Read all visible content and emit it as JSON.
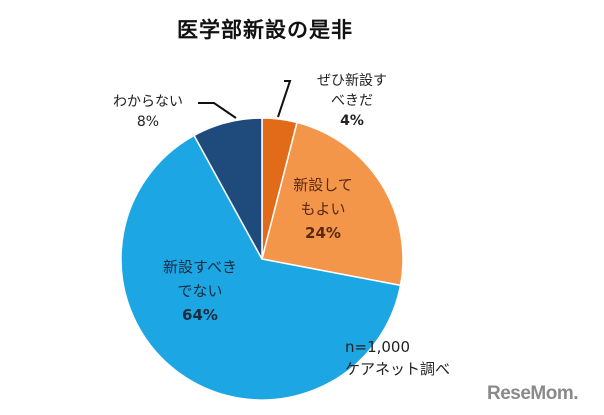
{
  "title": "医学部新設の是非",
  "chart_data": {
    "type": "pie",
    "title": "医学部新設の是非",
    "start_angle": "12 o'clock, clockwise",
    "slices": [
      {
        "label": "ぜひ新設すべきだ",
        "label_lines": [
          "ぜひ新設す",
          "べきだ"
        ],
        "value": 4,
        "pct": "4%",
        "color": "#e26b1a"
      },
      {
        "label": "新設してもよい",
        "label_lines": [
          "新設して",
          "もよい"
        ],
        "value": 24,
        "pct": "24%",
        "color": "#f4964a"
      },
      {
        "label": "新設すべきでない",
        "label_lines": [
          "新設すべき",
          "でない"
        ],
        "value": 64,
        "pct": "64%",
        "color": "#1ca6e4"
      },
      {
        "label": "わからない",
        "label_lines": [
          "わからない"
        ],
        "value": 8,
        "pct": "8%",
        "color": "#1f4a7c"
      }
    ],
    "legend": "none (data labels on/near slices)",
    "annotations": [
      "n=1,000",
      "ケアネット調べ"
    ]
  },
  "note": {
    "sample": "n=1,000",
    "source": "ケアネット調べ"
  },
  "logo": "ReseMom."
}
